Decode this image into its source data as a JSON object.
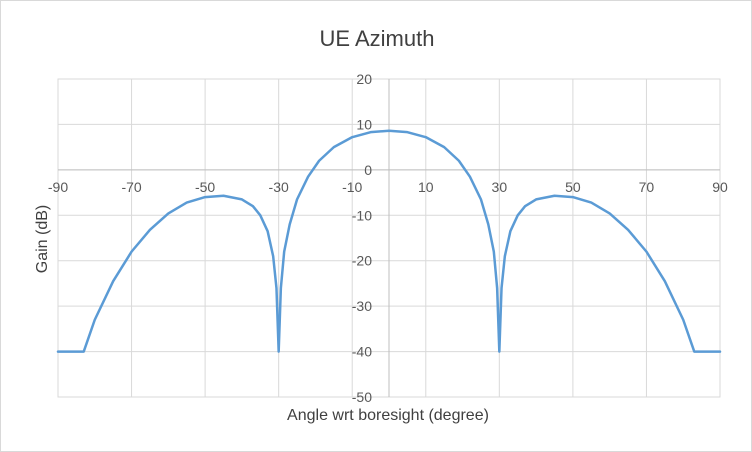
{
  "chart_data": {
    "type": "line",
    "title": "UE Azimuth",
    "xlabel": "Angle wrt boresight (degree)",
    "ylabel": "Gain (dB)",
    "xlim": [
      -90,
      90
    ],
    "ylim": [
      -50,
      20
    ],
    "x_ticks": [
      -90,
      -70,
      -50,
      -30,
      -10,
      10,
      30,
      50,
      70,
      90
    ],
    "y_ticks": [
      20,
      10,
      0,
      -10,
      -20,
      -30,
      -40,
      -50
    ],
    "x_tick_labels": [
      "-90",
      "-70",
      "-50",
      "-30",
      "-10",
      "10",
      "30",
      "50",
      "70",
      "90"
    ],
    "y_tick_labels": [
      "20",
      "10",
      "0",
      "-10",
      "-20",
      "-30",
      "-40",
      "-50"
    ],
    "grid": true,
    "series": [
      {
        "color": "#5b9bd5",
        "points": [
          [
            -90,
            -40
          ],
          [
            -83,
            -40
          ],
          [
            -80,
            -33
          ],
          [
            -75,
            -24.5
          ],
          [
            -70,
            -18
          ],
          [
            -65,
            -13.2
          ],
          [
            -60,
            -9.6
          ],
          [
            -55,
            -7.2
          ],
          [
            -50,
            -6
          ],
          [
            -45,
            -5.7
          ],
          [
            -40,
            -6.5
          ],
          [
            -37,
            -8
          ],
          [
            -35,
            -10
          ],
          [
            -33,
            -13.5
          ],
          [
            -31.5,
            -19
          ],
          [
            -30.6,
            -26
          ],
          [
            -30,
            -40
          ],
          [
            -29.4,
            -26
          ],
          [
            -28.5,
            -18
          ],
          [
            -27,
            -12
          ],
          [
            -25,
            -6.5
          ],
          [
            -22,
            -1.5
          ],
          [
            -19,
            2
          ],
          [
            -15,
            5
          ],
          [
            -10,
            7.2
          ],
          [
            -5,
            8.3
          ],
          [
            0,
            8.6
          ],
          [
            5,
            8.3
          ],
          [
            10,
            7.2
          ],
          [
            15,
            5
          ],
          [
            19,
            2
          ],
          [
            22,
            -1.5
          ],
          [
            25,
            -6.5
          ],
          [
            27,
            -12
          ],
          [
            28.5,
            -18
          ],
          [
            29.4,
            -26
          ],
          [
            30,
            -40
          ],
          [
            30.6,
            -26
          ],
          [
            31.5,
            -19
          ],
          [
            33,
            -13.5
          ],
          [
            35,
            -10
          ],
          [
            37,
            -8
          ],
          [
            40,
            -6.5
          ],
          [
            45,
            -5.7
          ],
          [
            50,
            -6
          ],
          [
            55,
            -7.2
          ],
          [
            60,
            -9.6
          ],
          [
            65,
            -13.2
          ],
          [
            70,
            -18
          ],
          [
            75,
            -24.5
          ],
          [
            80,
            -33
          ],
          [
            83,
            -40
          ],
          [
            90,
            -40
          ]
        ]
      }
    ]
  }
}
